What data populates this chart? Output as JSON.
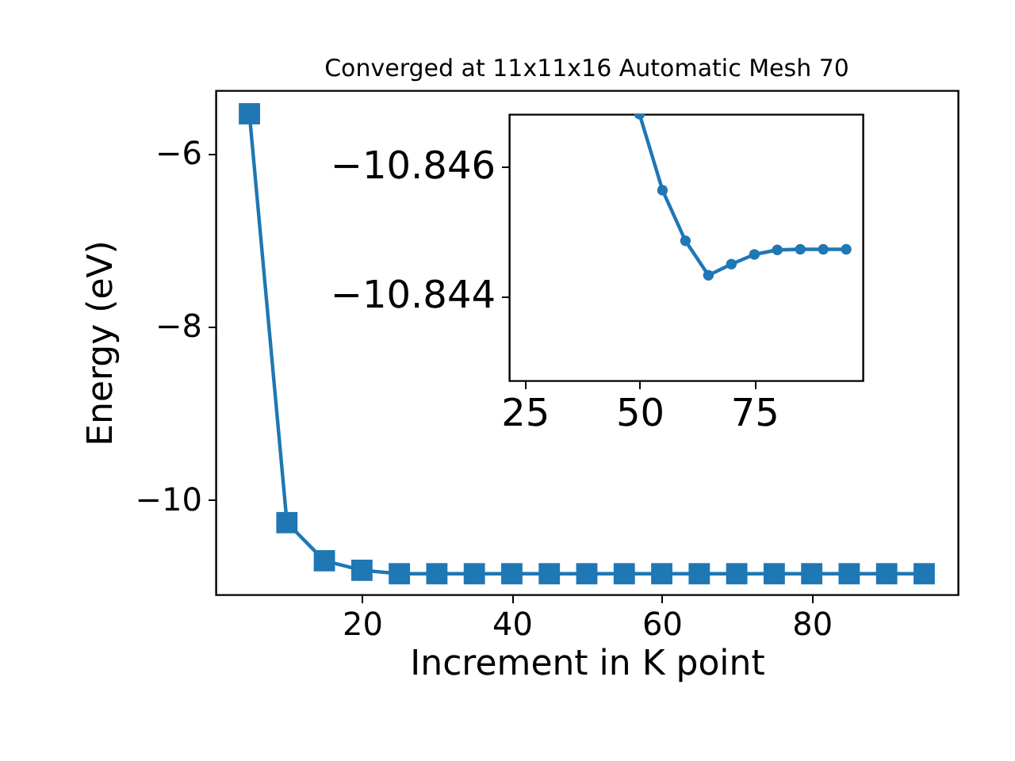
{
  "chart_data": [
    {
      "type": "line",
      "title": "Converged at 11x11x16 Automatic Mesh 70",
      "xlabel": "Increment in K point",
      "ylabel": "Energy (eV)",
      "color": "#1f77b4",
      "marker": "square",
      "x": [
        5,
        10,
        15,
        20,
        25,
        30,
        35,
        40,
        45,
        50,
        55,
        60,
        65,
        70,
        75,
        80,
        85,
        90,
        95
      ],
      "values": [
        -5.54,
        -10.26,
        -10.7,
        -10.81,
        -10.85,
        -10.85,
        -10.85,
        -10.85,
        -10.85,
        -10.85,
        -10.85,
        -10.85,
        -10.85,
        -10.85,
        -10.85,
        -10.85,
        -10.85,
        -10.85,
        -10.85
      ],
      "xlim": [
        0.5,
        99.5
      ],
      "ylim": [
        -11.09,
        -5.27
      ],
      "xticks": [
        20,
        40,
        60,
        80
      ],
      "yticks": [
        -10,
        -8,
        -6
      ]
    },
    {
      "type": "line",
      "color": "#1f77b4",
      "marker": "circle",
      "x": [
        50,
        55,
        60,
        65,
        70,
        75,
        80,
        85,
        90,
        95
      ],
      "values": [
        -10.8468,
        -10.84563,
        -10.84485,
        -10.84432,
        -10.84449,
        -10.84464,
        -10.84471,
        -10.84472,
        -10.84472,
        -10.84472
      ],
      "xlim": [
        21.6,
        98.6
      ],
      "ylim": [
        -10.8427,
        -10.8468
      ],
      "xticks": [
        25,
        50,
        75
      ],
      "yticks": [
        -10.846,
        -10.844
      ]
    }
  ]
}
